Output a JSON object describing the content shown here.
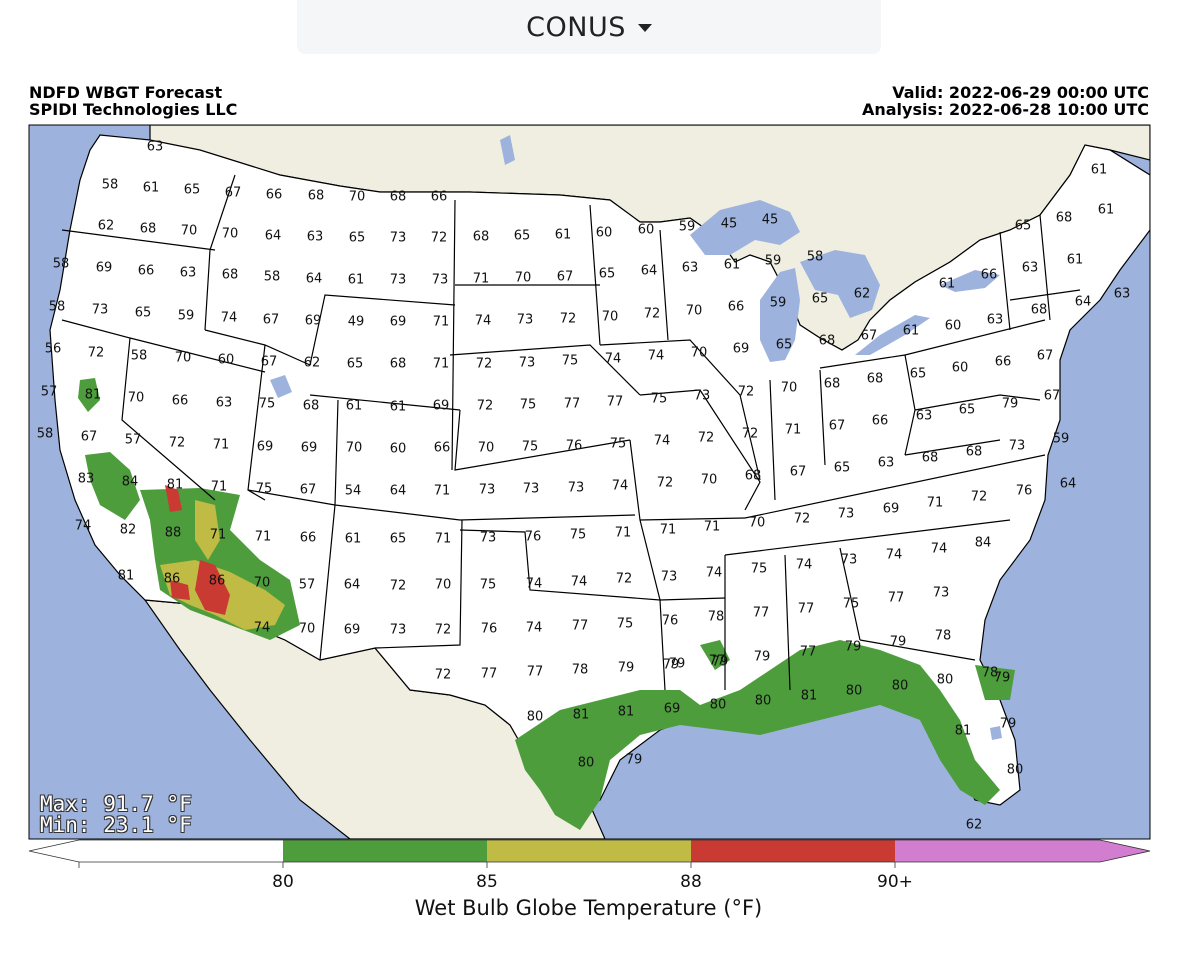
{
  "region_select": {
    "label": "CONUS",
    "caret_icon": "chevron-down-icon"
  },
  "header": {
    "title": "NDFD WBGT Forecast",
    "source": "SPIDI Technologies LLC",
    "valid": "Valid: 2022-06-29 00:00 UTC",
    "analysis": "Analysis: 2022-06-28 10:00 UTC"
  },
  "stats": {
    "max": "Max: 91.7 °F",
    "min": "Min: 23.1 °F"
  },
  "colors": {
    "water": "#9db3dd",
    "land": "#efeee0",
    "us_land": "#ffffff",
    "bin_80_85": "#4e9d3c",
    "bin_85_88": "#bfbb45",
    "bin_88_90": "#c93a33",
    "bin_90_plus": "#d37dd0"
  },
  "colorbar": {
    "title": "Wet Bulb Globe Temperature (°F)",
    "ticks": [
      "80",
      "85",
      "88",
      "90+"
    ]
  },
  "station_values": [
    "63",
    "58",
    "61",
    "65",
    "67",
    "66",
    "68",
    "70",
    "68",
    "66",
    "62",
    "68",
    "70",
    "70",
    "64",
    "63",
    "65",
    "73",
    "72",
    "68",
    "65",
    "61",
    "60",
    "60",
    "59",
    "45",
    "45",
    "58",
    "69",
    "66",
    "63",
    "68",
    "58",
    "64",
    "61",
    "73",
    "73",
    "71",
    "70",
    "67",
    "65",
    "64",
    "63",
    "61",
    "59",
    "58",
    "58",
    "73",
    "65",
    "59",
    "74",
    "67",
    "69",
    "49",
    "69",
    "71",
    "74",
    "73",
    "72",
    "70",
    "72",
    "70",
    "66",
    "59",
    "65",
    "62",
    "56",
    "72",
    "58",
    "70",
    "60",
    "67",
    "62",
    "65",
    "68",
    "71",
    "72",
    "73",
    "75",
    "74",
    "74",
    "70",
    "69",
    "65",
    "68",
    "67",
    "61",
    "60",
    "63",
    "57",
    "81",
    "70",
    "66",
    "63",
    "75",
    "68",
    "61",
    "61",
    "69",
    "72",
    "75",
    "77",
    "77",
    "75",
    "73",
    "72",
    "70",
    "68",
    "68",
    "65",
    "60",
    "66",
    "67",
    "58",
    "67",
    "57",
    "72",
    "71",
    "69",
    "69",
    "70",
    "60",
    "66",
    "70",
    "75",
    "76",
    "75",
    "74",
    "72",
    "72",
    "71",
    "67",
    "66",
    "63",
    "65",
    "79",
    "83",
    "84",
    "81",
    "71",
    "75",
    "67",
    "54",
    "64",
    "71",
    "73",
    "73",
    "73",
    "74",
    "72",
    "70",
    "68",
    "67",
    "65",
    "63",
    "68",
    "68",
    "73",
    "59",
    "74",
    "82",
    "88",
    "71",
    "71",
    "66",
    "61",
    "65",
    "71",
    "73",
    "76",
    "75",
    "71",
    "71",
    "71",
    "70",
    "72",
    "73",
    "69",
    "71",
    "72",
    "76",
    "64",
    "81",
    "86",
    "86",
    "70",
    "57",
    "64",
    "72",
    "70",
    "75",
    "74",
    "74",
    "72",
    "73",
    "74",
    "75",
    "74",
    "73",
    "74",
    "74",
    "84",
    "74",
    "70",
    "69",
    "73",
    "72",
    "76",
    "74",
    "77",
    "75",
    "76",
    "78",
    "77",
    "77",
    "75",
    "77",
    "73",
    "72",
    "77",
    "77",
    "78",
    "79",
    "79",
    "77",
    "79",
    "77",
    "79",
    "79",
    "78",
    "80",
    "81",
    "81",
    "69",
    "80",
    "80",
    "81",
    "80",
    "80",
    "80",
    "78",
    "81",
    "80",
    "79",
    "79",
    "79",
    "79",
    "80",
    "79",
    "62",
    "61",
    "68",
    "61",
    "63",
    "63",
    "61",
    "66",
    "68",
    "61",
    "64",
    "65",
    "67"
  ]
}
